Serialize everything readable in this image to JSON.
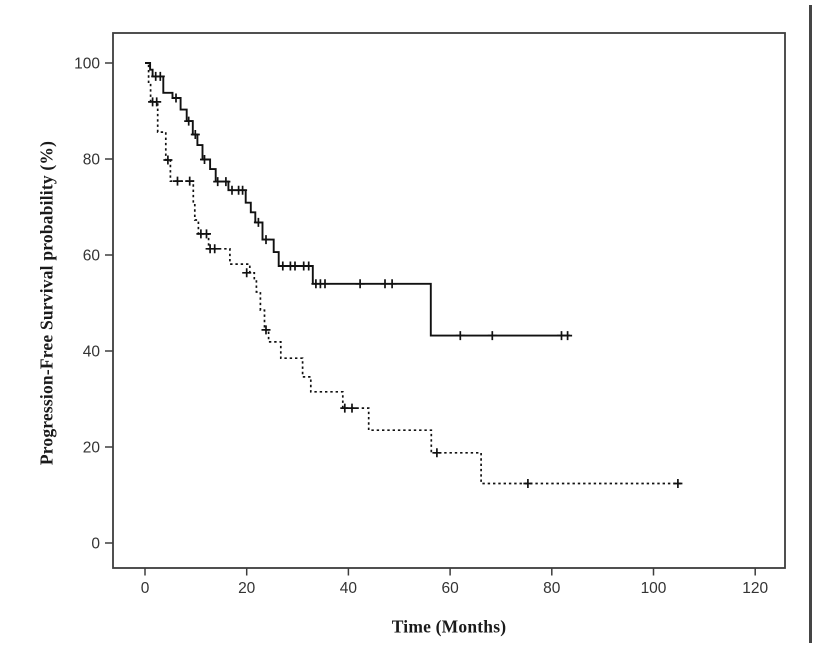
{
  "figure": {
    "background": "#ffffff"
  },
  "chart_data": {
    "type": "line",
    "subtype": "kaplan-meier-step-curves",
    "title": "",
    "xlabel": "Time (Months)",
    "ylabel": "Progression-Free Survival probability (%)",
    "x_ticks": [
      0,
      20,
      40,
      60,
      80,
      100,
      120
    ],
    "y_ticks": [
      0,
      20,
      40,
      60,
      80,
      100
    ],
    "xlim": [
      -6.3,
      125.9
    ],
    "ylim": [
      -5.2,
      106.3
    ],
    "grid": false,
    "legend_position": "none",
    "frame_color": "#3d3d3d",
    "line_color": "#111111",
    "tick_label_color": "#333333",
    "series": [
      {
        "name": "group-1-solid",
        "line_style": "solid",
        "points": [
          [
            0,
            100
          ],
          [
            1,
            98.6
          ],
          [
            1.5,
            97.2
          ],
          [
            3.6,
            93.8
          ],
          [
            5.4,
            92.7
          ],
          [
            7,
            90.3
          ],
          [
            8.2,
            87.9
          ],
          [
            9.4,
            85.1
          ],
          [
            10.3,
            82.9
          ],
          [
            11.3,
            79.9
          ],
          [
            12.8,
            77.9
          ],
          [
            13.9,
            75.3
          ],
          [
            16.4,
            73.5
          ],
          [
            19.8,
            70.9
          ],
          [
            20.8,
            68.9
          ],
          [
            21.7,
            66.8
          ],
          [
            23.1,
            63.2
          ],
          [
            25.3,
            60.6
          ],
          [
            26.3,
            57.7
          ],
          [
            33,
            54
          ],
          [
            56.2,
            43.2
          ],
          [
            83.6,
            43.2
          ]
        ],
        "censor_marks": [
          [
            2.1,
            97.2
          ],
          [
            3.0,
            97.2
          ],
          [
            6.1,
            92.7
          ],
          [
            8.6,
            87.9
          ],
          [
            9.9,
            85.1
          ],
          [
            11.7,
            79.9
          ],
          [
            14.3,
            75.3
          ],
          [
            15.9,
            75.3
          ],
          [
            17.1,
            73.5
          ],
          [
            18.4,
            73.5
          ],
          [
            19.2,
            73.5
          ],
          [
            22.3,
            66.8
          ],
          [
            23.8,
            63.2
          ],
          [
            27.1,
            57.7
          ],
          [
            28.6,
            57.7
          ],
          [
            29.5,
            57.7
          ],
          [
            31.2,
            57.7
          ],
          [
            32.2,
            57.7
          ],
          [
            33.6,
            54
          ],
          [
            34.5,
            54
          ],
          [
            35.4,
            54
          ],
          [
            42.3,
            54
          ],
          [
            47.2,
            54
          ],
          [
            48.6,
            54
          ],
          [
            62,
            43.2
          ],
          [
            68.3,
            43.2
          ],
          [
            81.9,
            43.2
          ],
          [
            83.1,
            43.2
          ]
        ]
      },
      {
        "name": "group-2-dashed",
        "line_style": "dashed",
        "points": [
          [
            0,
            100
          ],
          [
            0.7,
            95.7
          ],
          [
            1.1,
            91.9
          ],
          [
            2.5,
            85.6
          ],
          [
            4.1,
            79.8
          ],
          [
            5,
            75.4
          ],
          [
            9.5,
            70.9
          ],
          [
            9.8,
            67.3
          ],
          [
            10.5,
            64.4
          ],
          [
            12.5,
            61.3
          ],
          [
            16.7,
            58.1
          ],
          [
            20.6,
            56.3
          ],
          [
            21.5,
            54.8
          ],
          [
            21.9,
            52.3
          ],
          [
            22.7,
            48.5
          ],
          [
            23.5,
            44.4
          ],
          [
            24.3,
            41.9
          ],
          [
            26.7,
            38.5
          ],
          [
            31,
            34.6
          ],
          [
            32.6,
            31.5
          ],
          [
            38.9,
            28.1
          ],
          [
            44,
            23.5
          ],
          [
            56.3,
            18.8
          ],
          [
            66.1,
            12.4
          ],
          [
            105.6,
            12.4
          ]
        ],
        "censor_marks": [
          [
            1.5,
            91.9
          ],
          [
            2.3,
            91.9
          ],
          [
            4.5,
            79.8
          ],
          [
            6.4,
            75.4
          ],
          [
            8.8,
            75.4
          ],
          [
            11,
            64.4
          ],
          [
            12.1,
            64.4
          ],
          [
            12.8,
            61.3
          ],
          [
            13.7,
            61.3
          ],
          [
            20,
            56.3
          ],
          [
            23.8,
            44.4
          ],
          [
            39.3,
            28.1
          ],
          [
            40.7,
            28.1
          ],
          [
            57.4,
            18.8
          ],
          [
            75.3,
            12.4
          ],
          [
            104.8,
            12.4
          ]
        ]
      }
    ]
  },
  "artifacts": {
    "right_edge_line_color": "#454545"
  }
}
